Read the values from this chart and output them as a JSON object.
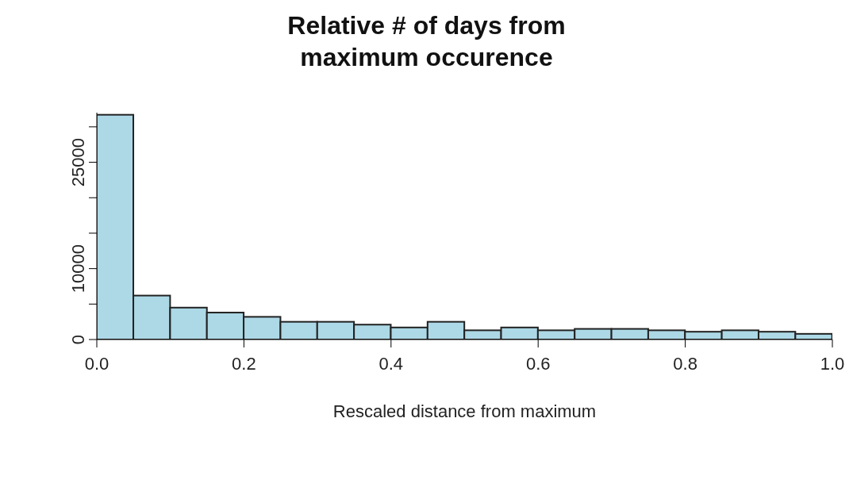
{
  "chart_data": {
    "type": "histogram",
    "title": "Relative # of days from\nmaximum occurence",
    "xlabel": "Rescaled distance from maximum",
    "bins": [
      0,
      0.05,
      0.1,
      0.15,
      0.2,
      0.25,
      0.3,
      0.35,
      0.4,
      0.45,
      0.5,
      0.55,
      0.6,
      0.65,
      0.7,
      0.75,
      0.8,
      0.85,
      0.9,
      0.95,
      1.0
    ],
    "values": [
      31700,
      6200,
      4500,
      3800,
      3200,
      2500,
      2500,
      2100,
      1700,
      2500,
      1300,
      1700,
      1300,
      1500,
      1500,
      1300,
      1100,
      1300,
      1100,
      800
    ],
    "color": "#add8e6",
    "xlim": [
      0,
      1
    ],
    "xticks": [
      {
        "value": 0,
        "label": "0.0"
      },
      0.2,
      0.4,
      0.6,
      0.8,
      {
        "value": 1,
        "label": "1.0"
      }
    ],
    "ylim": [
      0,
      32000
    ],
    "yticks": [
      0,
      {
        "value": 5000,
        "label": null
      },
      10000,
      {
        "value": 15000,
        "label": null
      },
      {
        "value": 20000,
        "label": null
      },
      25000,
      {
        "value": 30000,
        "label": null
      }
    ]
  }
}
